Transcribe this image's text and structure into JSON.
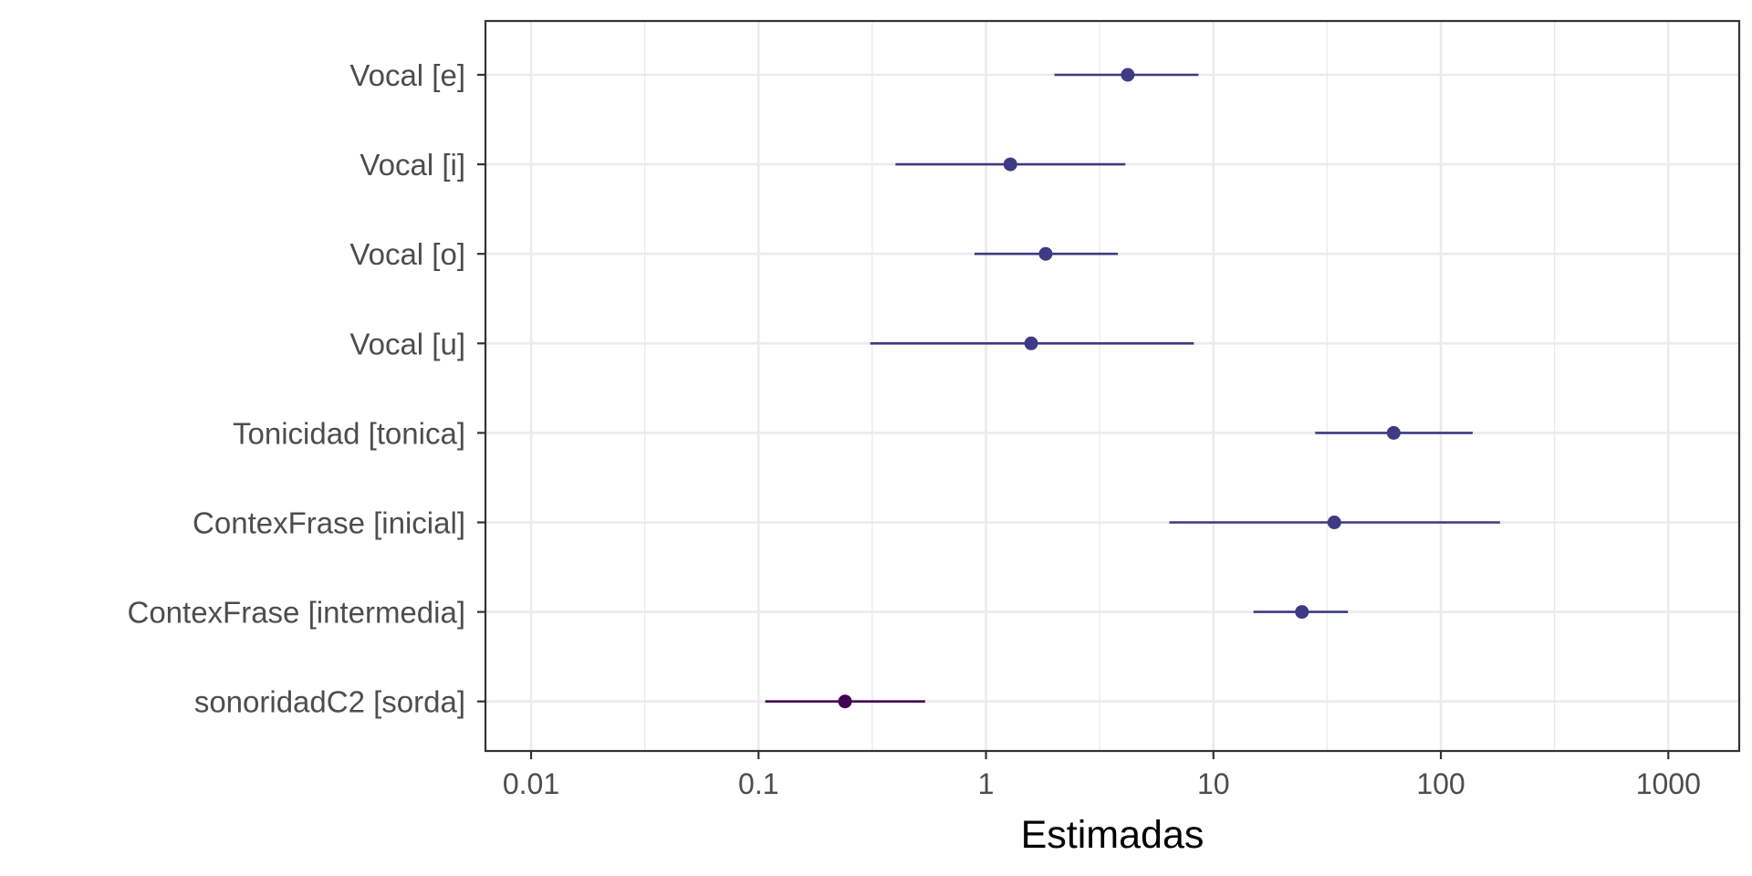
{
  "chart_data": {
    "type": "scatter",
    "title": "",
    "xlabel": "Estimadas",
    "ylabel": "",
    "x_scale": "log10",
    "xlim": [
      0.0063,
      2050
    ],
    "x_ticks": [
      0.01,
      0.1,
      1,
      10,
      100,
      1000
    ],
    "x_tick_labels": [
      "0.01",
      "0.1",
      "1",
      "10",
      "100",
      "1000"
    ],
    "grid": true,
    "legend": "none",
    "colors": {
      "positive": "#3e3a84",
      "negative": "#440154",
      "grid": "#ebebeb",
      "panel_border": "#333333"
    },
    "terms": [
      {
        "label": "Vocal [e]",
        "estimate": 4.2,
        "ci_low": 2.0,
        "ci_high": 8.6,
        "group": "positive"
      },
      {
        "label": "Vocal [i]",
        "estimate": 1.28,
        "ci_low": 0.4,
        "ci_high": 4.1,
        "group": "positive"
      },
      {
        "label": "Vocal [o]",
        "estimate": 1.83,
        "ci_low": 0.89,
        "ci_high": 3.8,
        "group": "positive"
      },
      {
        "label": "Vocal [u]",
        "estimate": 1.58,
        "ci_low": 0.31,
        "ci_high": 8.2,
        "group": "positive"
      },
      {
        "label": "Tonicidad [tonica]",
        "estimate": 62,
        "ci_low": 28,
        "ci_high": 138,
        "group": "positive"
      },
      {
        "label": "ContexFrase [inicial]",
        "estimate": 34,
        "ci_low": 6.4,
        "ci_high": 182,
        "group": "positive"
      },
      {
        "label": "ContexFrase [intermedia]",
        "estimate": 24.5,
        "ci_low": 15,
        "ci_high": 39,
        "group": "positive"
      },
      {
        "label": "sonoridadC2 [sorda]",
        "estimate": 0.24,
        "ci_low": 0.107,
        "ci_high": 0.54,
        "group": "negative"
      }
    ]
  }
}
